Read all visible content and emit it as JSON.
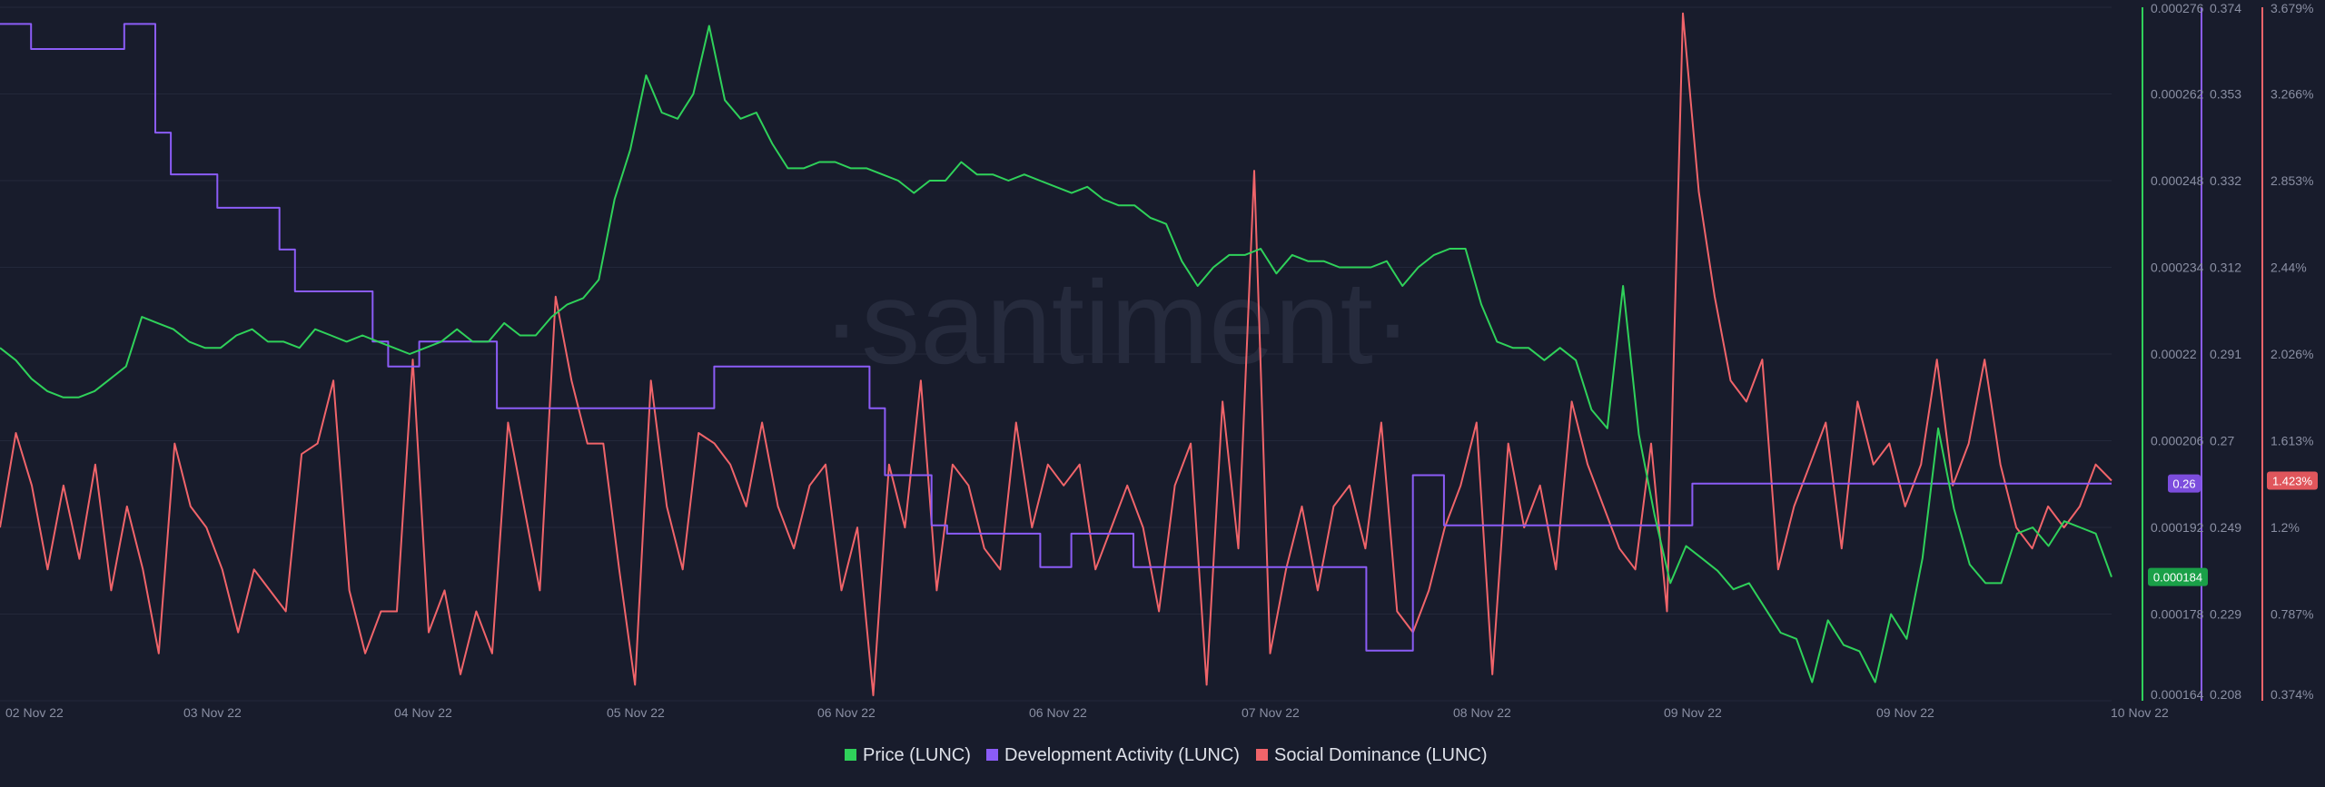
{
  "watermark": "·santiment·",
  "colors": {
    "background": "#181c2c",
    "grid": "#23283a",
    "price": "#2fd15a",
    "dev": "#8b5cf6",
    "social": "#f0646a"
  },
  "chart_data": {
    "type": "line",
    "title": "",
    "x_ticks": [
      "02 Nov 22",
      "03 Nov 22",
      "04 Nov 22",
      "05 Nov 22",
      "06 Nov 22",
      "06 Nov 22",
      "07 Nov 22",
      "08 Nov 22",
      "09 Nov 22",
      "09 Nov 22",
      "10 Nov 22"
    ],
    "axes": {
      "price": {
        "ticks": [
          "0.000276",
          "0.000262",
          "0.000248",
          "0.000234",
          "0.00022",
          "0.000206",
          "0.000192",
          "0.000178",
          "0.000164"
        ],
        "range": [
          0.000164,
          0.000276
        ],
        "color": "#2fd15a"
      },
      "dev": {
        "ticks": [
          "0.374",
          "0.353",
          "0.332",
          "0.312",
          "0.291",
          "0.27",
          "0.249",
          "0.229",
          "0.208"
        ],
        "range": [
          0.208,
          0.374
        ],
        "color": "#8b5cf6"
      },
      "social": {
        "ticks": [
          "3.679%",
          "3.266%",
          "2.853%",
          "2.44%",
          "2.026%",
          "1.613%",
          "1.2%",
          "0.787%",
          "0.374%"
        ],
        "range": [
          0.374,
          3.679
        ],
        "color": "#f0646a"
      }
    },
    "current_values": {
      "price": "0.000184",
      "dev": "0.26",
      "social": "1.423%"
    },
    "legend": [
      "Price (LUNC)",
      "Development Activity (LUNC)",
      "Social Dominance (LUNC)"
    ],
    "series": [
      {
        "name": "Price (LUNC)",
        "axis": "price",
        "color": "#2fd15a",
        "values": [
          0.000221,
          0.000219,
          0.000216,
          0.000214,
          0.000213,
          0.000213,
          0.000214,
          0.000216,
          0.000218,
          0.000226,
          0.000225,
          0.000224,
          0.000222,
          0.000221,
          0.000221,
          0.000223,
          0.000224,
          0.000222,
          0.000222,
          0.000221,
          0.000224,
          0.000223,
          0.000222,
          0.000223,
          0.000222,
          0.000221,
          0.00022,
          0.000221,
          0.000222,
          0.000224,
          0.000222,
          0.000222,
          0.000225,
          0.000223,
          0.000223,
          0.000226,
          0.000228,
          0.000229,
          0.000232,
          0.000245,
          0.000253,
          0.000265,
          0.000259,
          0.000258,
          0.000262,
          0.000273,
          0.000261,
          0.000258,
          0.000259,
          0.000254,
          0.00025,
          0.00025,
          0.000251,
          0.000251,
          0.00025,
          0.00025,
          0.000249,
          0.000248,
          0.000246,
          0.000248,
          0.000248,
          0.000251,
          0.000249,
          0.000249,
          0.000248,
          0.000249,
          0.000248,
          0.000247,
          0.000246,
          0.000247,
          0.000245,
          0.000244,
          0.000244,
          0.000242,
          0.000241,
          0.000235,
          0.000231,
          0.000234,
          0.000236,
          0.000236,
          0.000237,
          0.000233,
          0.000236,
          0.000235,
          0.000235,
          0.000234,
          0.000234,
          0.000234,
          0.000235,
          0.000231,
          0.000234,
          0.000236,
          0.000237,
          0.000237,
          0.000228,
          0.000222,
          0.000221,
          0.000221,
          0.000219,
          0.000221,
          0.000219,
          0.000211,
          0.000208,
          0.000231,
          0.000207,
          0.000194,
          0.000183,
          0.000189,
          0.000187,
          0.000185,
          0.000182,
          0.000183,
          0.000179,
          0.000175,
          0.000174,
          0.000167,
          0.000177,
          0.000173,
          0.000172,
          0.000167,
          0.000178,
          0.000174,
          0.000187,
          0.000208,
          0.000195,
          0.000186,
          0.000183,
          0.000183,
          0.000191,
          0.000192,
          0.000189,
          0.000193,
          0.000192,
          0.000191,
          0.000184
        ]
      },
      {
        "name": "Development Activity (LUNC)",
        "axis": "dev",
        "color": "#8b5cf6",
        "values": [
          0.37,
          0.37,
          0.364,
          0.364,
          0.364,
          0.364,
          0.364,
          0.364,
          0.37,
          0.37,
          0.344,
          0.334,
          0.334,
          0.334,
          0.326,
          0.326,
          0.326,
          0.326,
          0.316,
          0.306,
          0.306,
          0.306,
          0.306,
          0.306,
          0.294,
          0.288,
          0.288,
          0.294,
          0.294,
          0.294,
          0.294,
          0.294,
          0.278,
          0.278,
          0.278,
          0.278,
          0.278,
          0.278,
          0.278,
          0.278,
          0.278,
          0.278,
          0.278,
          0.278,
          0.278,
          0.278,
          0.288,
          0.288,
          0.288,
          0.288,
          0.288,
          0.288,
          0.288,
          0.288,
          0.288,
          0.288,
          0.278,
          0.262,
          0.262,
          0.262,
          0.25,
          0.248,
          0.248,
          0.248,
          0.248,
          0.248,
          0.248,
          0.24,
          0.24,
          0.248,
          0.248,
          0.248,
          0.248,
          0.24,
          0.24,
          0.24,
          0.24,
          0.24,
          0.24,
          0.24,
          0.24,
          0.24,
          0.24,
          0.24,
          0.24,
          0.24,
          0.24,
          0.24,
          0.22,
          0.22,
          0.22,
          0.262,
          0.262,
          0.25,
          0.25,
          0.25,
          0.25,
          0.25,
          0.25,
          0.25,
          0.25,
          0.25,
          0.25,
          0.25,
          0.25,
          0.25,
          0.25,
          0.25,
          0.25,
          0.26,
          0.26,
          0.26,
          0.26,
          0.26,
          0.26,
          0.26,
          0.26,
          0.26,
          0.26,
          0.26,
          0.26,
          0.26,
          0.26,
          0.26,
          0.26,
          0.26,
          0.26,
          0.26,
          0.26,
          0.26,
          0.26,
          0.26,
          0.26,
          0.26,
          0.26,
          0.26,
          0.26
        ]
      },
      {
        "name": "Social Dominance (LUNC)",
        "axis": "social",
        "color": "#f0646a",
        "values": [
          1.2,
          1.65,
          1.4,
          1.0,
          1.4,
          1.05,
          1.5,
          0.9,
          1.3,
          1.0,
          0.6,
          1.6,
          1.3,
          1.2,
          1.0,
          0.7,
          1.0,
          0.9,
          0.8,
          1.55,
          1.6,
          1.9,
          0.9,
          0.6,
          0.8,
          0.8,
          2.0,
          0.7,
          0.9,
          0.5,
          0.8,
          0.6,
          1.7,
          1.3,
          0.9,
          2.3,
          1.9,
          1.6,
          1.6,
          1.0,
          0.45,
          1.9,
          1.3,
          1.0,
          1.65,
          1.6,
          1.5,
          1.3,
          1.7,
          1.3,
          1.1,
          1.4,
          1.5,
          0.9,
          1.2,
          0.4,
          1.5,
          1.2,
          1.9,
          0.9,
          1.5,
          1.4,
          1.1,
          1.0,
          1.7,
          1.2,
          1.5,
          1.4,
          1.5,
          1.0,
          1.2,
          1.4,
          1.2,
          0.8,
          1.4,
          1.6,
          0.45,
          1.8,
          1.1,
          2.9,
          0.6,
          1.0,
          1.3,
          0.9,
          1.3,
          1.4,
          1.1,
          1.7,
          0.8,
          0.7,
          0.9,
          1.2,
          1.4,
          1.7,
          0.5,
          1.6,
          1.2,
          1.4,
          1.0,
          1.8,
          1.5,
          1.3,
          1.1,
          1.0,
          1.6,
          0.8,
          3.65,
          2.8,
          2.3,
          1.9,
          1.8,
          2.0,
          1.0,
          1.3,
          1.5,
          1.7,
          1.1,
          1.8,
          1.5,
          1.6,
          1.3,
          1.5,
          2.0,
          1.4,
          1.6,
          2.0,
          1.5,
          1.2,
          1.1,
          1.3,
          1.2,
          1.3,
          1.5,
          1.423
        ]
      }
    ]
  }
}
